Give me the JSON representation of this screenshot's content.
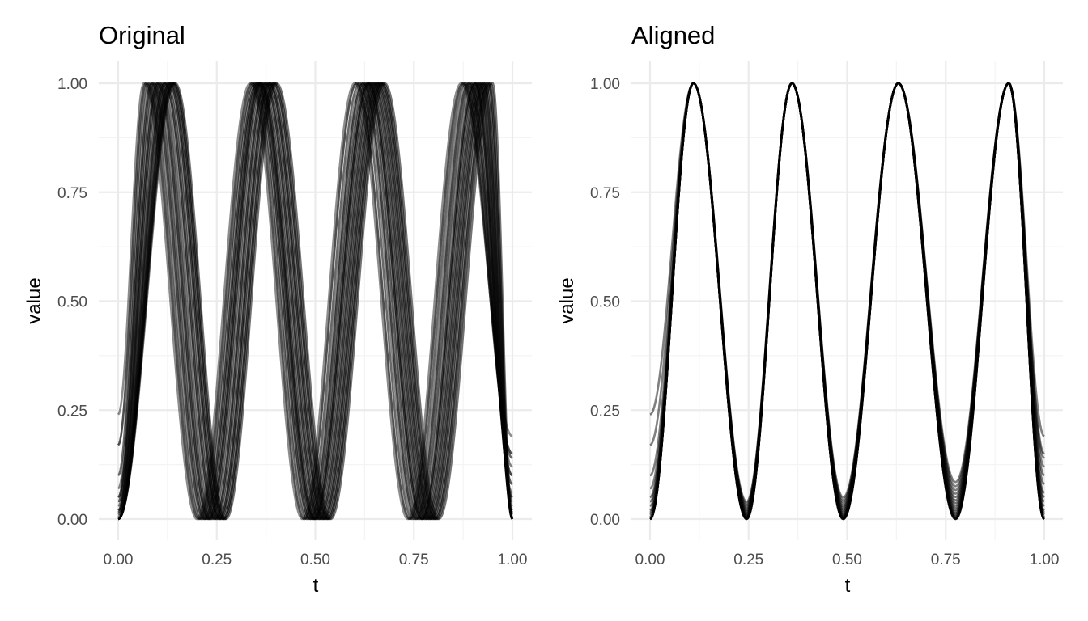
{
  "chart_data": [
    {
      "type": "line",
      "title": "Original",
      "xlabel": "t",
      "ylabel": "value",
      "xlim": [
        0,
        1
      ],
      "ylim": [
        0,
        1
      ],
      "x_ticks": [
        "0.00",
        "0.25",
        "0.50",
        "0.75",
        "1.00"
      ],
      "y_ticks": [
        "0.00",
        "0.25",
        "0.50",
        "0.75",
        "1.00"
      ],
      "grid": true,
      "legend": "none",
      "line_color": "#000000",
      "n_series": 20,
      "peak_t_range": [
        [
          0.06,
          0.14
        ],
        [
          0.32,
          0.4
        ],
        [
          0.59,
          0.67
        ],
        [
          0.87,
          0.95
        ]
      ],
      "series_peaks": [
        [
          0.065,
          0.335,
          0.6,
          0.87
        ],
        [
          0.07,
          0.34,
          0.605,
          0.875
        ],
        [
          0.075,
          0.345,
          0.612,
          0.88
        ],
        [
          0.08,
          0.348,
          0.618,
          0.885
        ],
        [
          0.085,
          0.352,
          0.622,
          0.89
        ],
        [
          0.09,
          0.355,
          0.628,
          0.895
        ],
        [
          0.095,
          0.358,
          0.632,
          0.9
        ],
        [
          0.1,
          0.36,
          0.635,
          0.905
        ],
        [
          0.105,
          0.363,
          0.638,
          0.908
        ],
        [
          0.11,
          0.366,
          0.642,
          0.912
        ],
        [
          0.115,
          0.37,
          0.645,
          0.915
        ],
        [
          0.118,
          0.373,
          0.648,
          0.918
        ],
        [
          0.122,
          0.376,
          0.652,
          0.922
        ],
        [
          0.126,
          0.38,
          0.655,
          0.925
        ],
        [
          0.13,
          0.383,
          0.658,
          0.928
        ],
        [
          0.133,
          0.386,
          0.662,
          0.932
        ],
        [
          0.136,
          0.39,
          0.665,
          0.936
        ],
        [
          0.139,
          0.394,
          0.668,
          0.94
        ],
        [
          0.142,
          0.398,
          0.672,
          0.945
        ],
        [
          0.145,
          0.402,
          0.676,
          0.95
        ]
      ],
      "start_values": [
        0.24,
        0.17,
        0.1,
        0.07,
        0.05,
        0.04,
        0.03,
        0.02,
        0.015,
        0.01,
        0.005,
        0.0,
        0.0,
        0.0,
        0.0,
        0.0,
        0.0,
        0.0,
        0.0,
        0.0
      ],
      "end_values": [
        0.19,
        0.15,
        0.14,
        0.12,
        0.1,
        0.08,
        0.06,
        0.05,
        0.04,
        0.03,
        0.02,
        0.015,
        0.01,
        0.005,
        0.0,
        0.0,
        0.0,
        0.0,
        0.0,
        0.0
      ]
    },
    {
      "type": "line",
      "title": "Aligned",
      "xlabel": "t",
      "ylabel": "value",
      "xlim": [
        0,
        1
      ],
      "ylim": [
        0,
        1
      ],
      "x_ticks": [
        "0.00",
        "0.25",
        "0.50",
        "0.75",
        "1.00"
      ],
      "y_ticks": [
        "0.00",
        "0.25",
        "0.50",
        "0.75",
        "1.00"
      ],
      "grid": true,
      "legend": "none",
      "line_color": "#000000",
      "n_series": 20,
      "peaks_t": [
        0.11,
        0.36,
        0.63,
        0.91
      ],
      "peak_value": 1.0,
      "trough_t": [
        0.245,
        0.49,
        0.775
      ],
      "trough_values_max": [
        0.04,
        0.05,
        0.085
      ],
      "start_values": [
        0.24,
        0.17,
        0.1,
        0.07,
        0.05,
        0.04,
        0.03,
        0.02,
        0.015,
        0.01,
        0.005,
        0.0,
        0.0,
        0.0,
        0.0,
        0.0,
        0.0,
        0.0,
        0.0,
        0.0
      ],
      "end_values": [
        0.19,
        0.15,
        0.14,
        0.12,
        0.1,
        0.08,
        0.06,
        0.05,
        0.04,
        0.03,
        0.02,
        0.015,
        0.01,
        0.005,
        0.0,
        0.0,
        0.0,
        0.0,
        0.0,
        0.0
      ]
    }
  ]
}
